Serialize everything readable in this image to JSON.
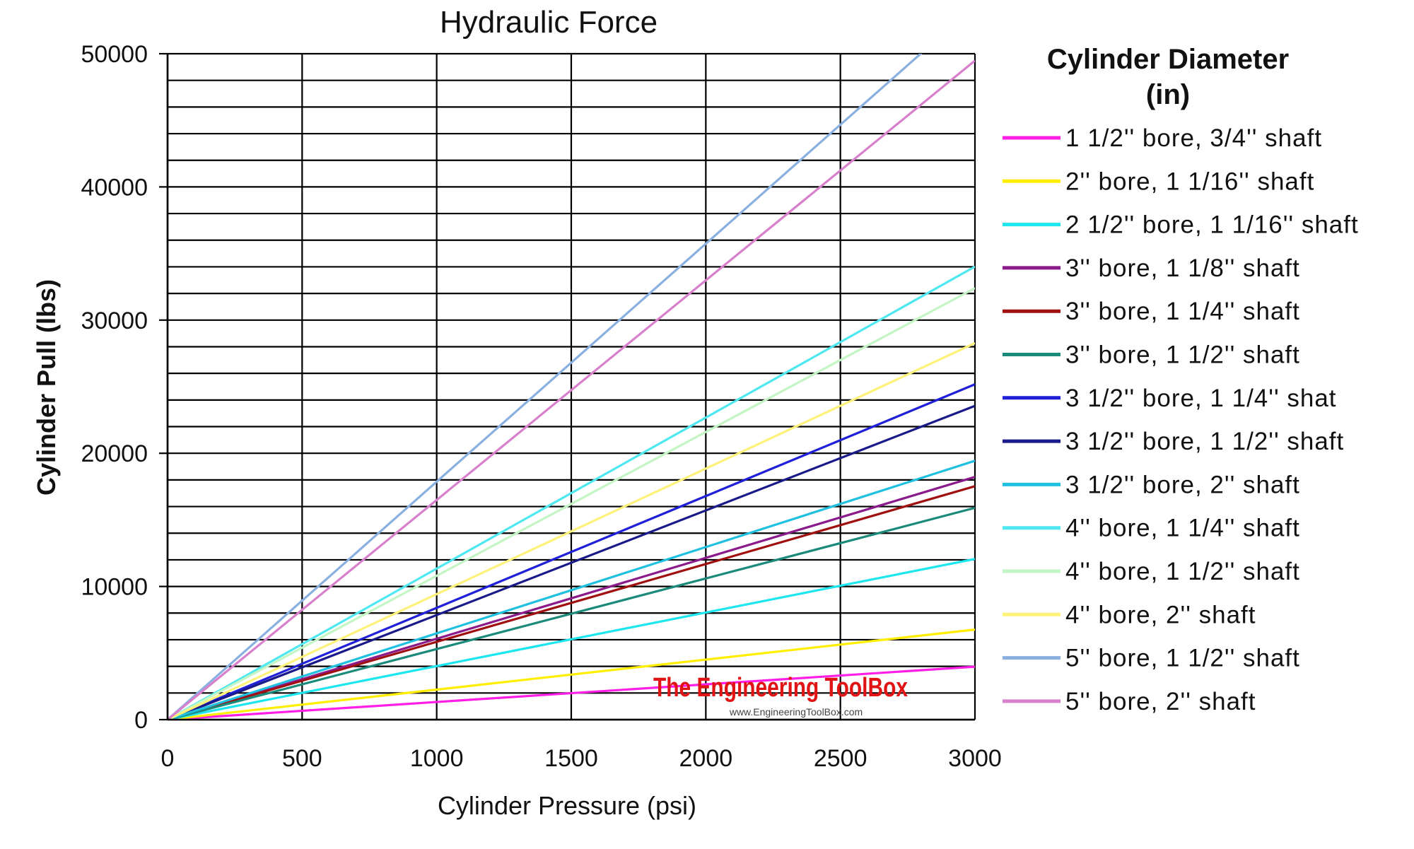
{
  "chart_data": {
    "type": "line",
    "title": "Hydraulic Force",
    "xlabel": "Cylinder Pressure (psi)",
    "ylabel": "Cylinder Pull (lbs)",
    "xlim": [
      0,
      3000
    ],
    "ylim": [
      0,
      50000
    ],
    "x_ticks": [
      "0",
      "500",
      "1000",
      "1500",
      "2000",
      "2500",
      "3000"
    ],
    "y_ticks": [
      "0",
      "10000",
      "20000",
      "30000",
      "40000",
      "50000"
    ],
    "grid": true,
    "legend_title_line1": "Cylinder Diameter",
    "legend_title_line2": "(in)",
    "legend_position": "right",
    "series": [
      {
        "name": "1 1/2'' bore, 3/4'' shaft",
        "color": "#ff1ee6",
        "x": [
          0,
          3000
        ],
        "y": [
          0,
          3976
        ]
      },
      {
        "name": "2'' bore, 1 1/16'' shaft",
        "color": "#ffee00",
        "x": [
          0,
          3000
        ],
        "y": [
          0,
          6764
        ]
      },
      {
        "name": "2 1/2'' bore, 1 1/16'' shaft",
        "color": "#1ee6ee",
        "x": [
          0,
          3000
        ],
        "y": [
          0,
          12066
        ]
      },
      {
        "name": "3'' bore, 1 1/8'' shaft",
        "color": "#8b1a8b",
        "x": [
          0,
          3000
        ],
        "y": [
          0,
          18223
        ]
      },
      {
        "name": "3'' bore, 1 1/4'' shaft",
        "color": "#a01010",
        "x": [
          0,
          3000
        ],
        "y": [
          0,
          17524
        ]
      },
      {
        "name": "3'' bore, 1 1/2'' shaft",
        "color": "#1a8a7a",
        "x": [
          0,
          3000
        ],
        "y": [
          0,
          15904
        ]
      },
      {
        "name": "3 1/2'' bore, 1 1/4'' shat",
        "color": "#2020d8",
        "x": [
          0,
          3000
        ],
        "y": [
          0,
          25182
        ]
      },
      {
        "name": "3 1/2'' bore, 1 1/2'' shaft",
        "color": "#1a1a8a",
        "x": [
          0,
          3000
        ],
        "y": [
          0,
          23562
        ]
      },
      {
        "name": "3 1/2'' bore, 2'' shaft",
        "color": "#20c0e0",
        "x": [
          0,
          3000
        ],
        "y": [
          0,
          19439
        ]
      },
      {
        "name": "4'' bore, 1 1/4'' shaft",
        "color": "#50e8f0",
        "x": [
          0,
          3000
        ],
        "y": [
          0,
          34017
        ]
      },
      {
        "name": "4'' bore, 1 1/2'' shaft",
        "color": "#c4f5c4",
        "x": [
          0,
          3000
        ],
        "y": [
          0,
          32397
        ]
      },
      {
        "name": "4'' bore, 2'' shaft",
        "color": "#fff27a",
        "x": [
          0,
          3000
        ],
        "y": [
          0,
          28274
        ]
      },
      {
        "name": "5'' bore, 1 1/2'' shaft",
        "color": "#8ab0e0",
        "x": [
          0,
          3000
        ],
        "y": [
          0,
          53605
        ]
      },
      {
        "name": "5'' bore, 2'' shaft",
        "color": "#d880cc",
        "x": [
          0,
          3000
        ],
        "y": [
          0,
          49480
        ]
      }
    ]
  },
  "watermark": {
    "title": "The Engineering ToolBox",
    "url": "www.EngineeringToolBox.com"
  }
}
